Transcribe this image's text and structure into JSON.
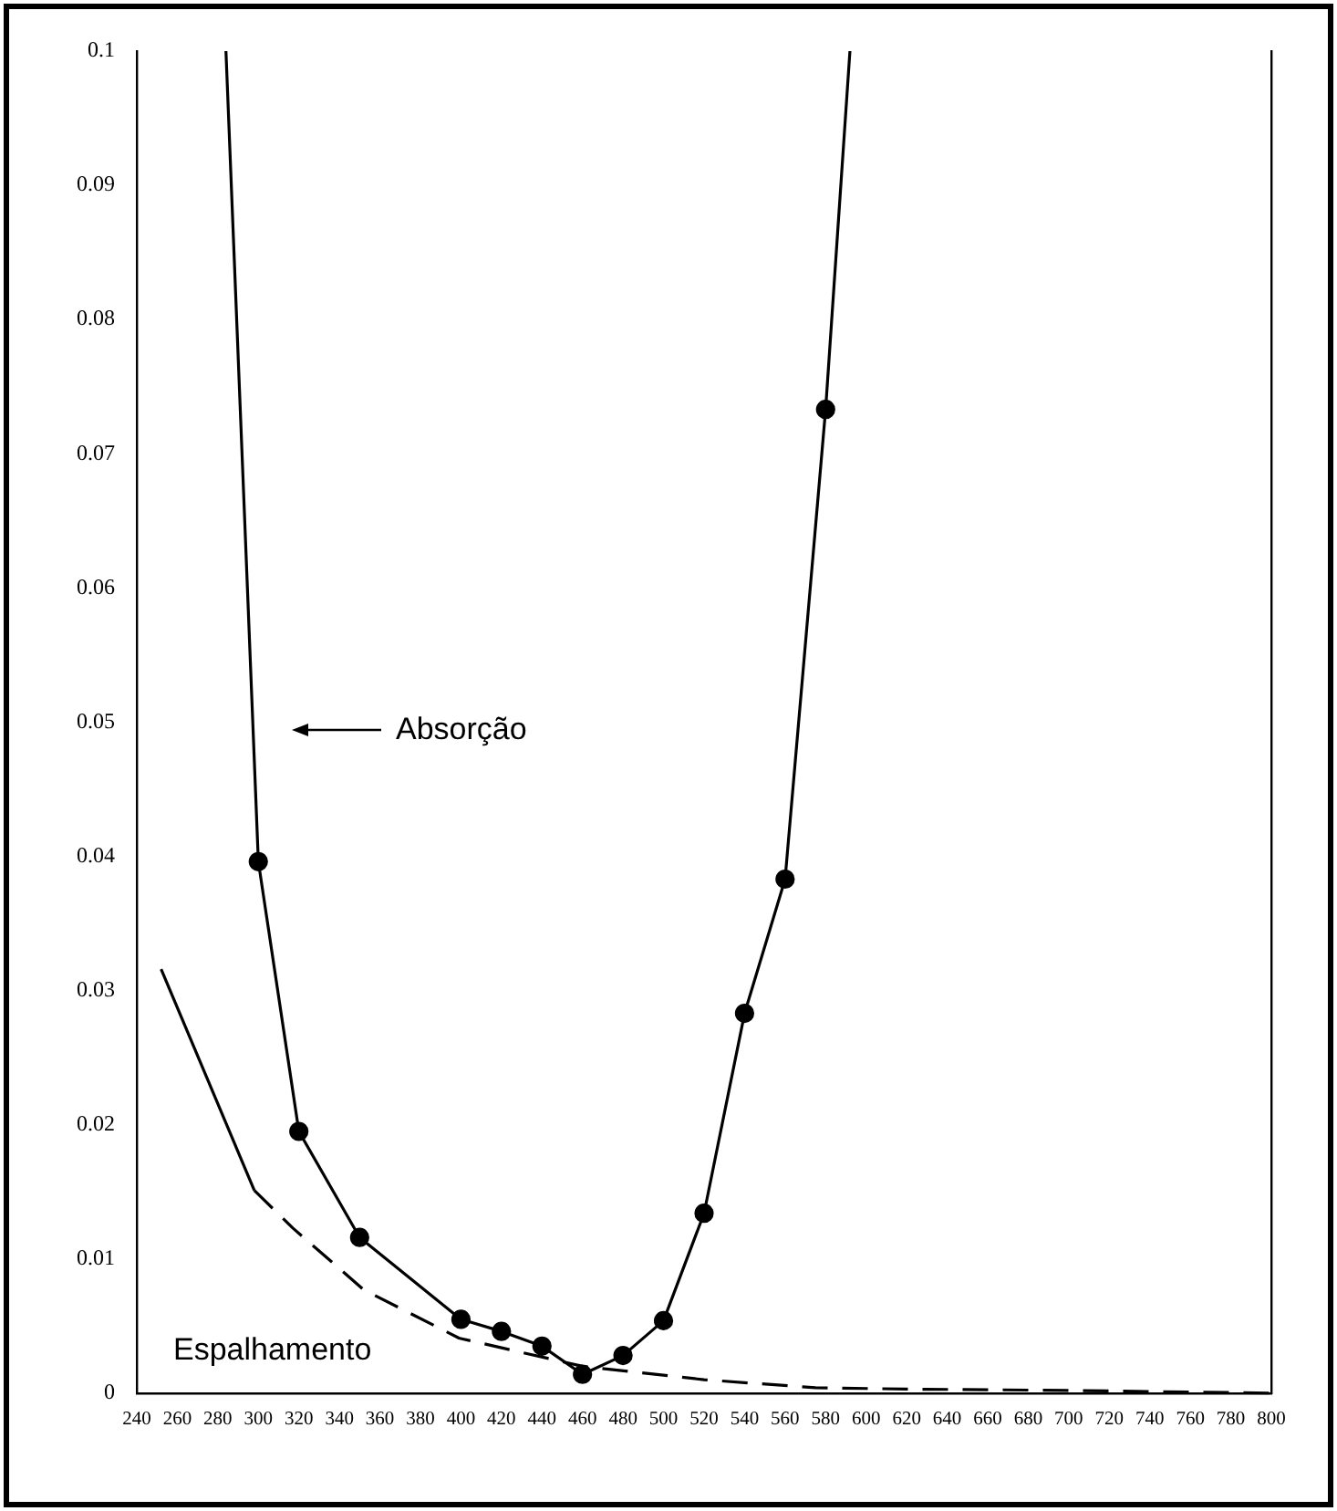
{
  "chart_data": {
    "type": "line",
    "xlim": [
      240,
      800
    ],
    "xticks": [
      240,
      260,
      280,
      300,
      320,
      340,
      360,
      380,
      400,
      420,
      440,
      460,
      480,
      500,
      520,
      540,
      560,
      580,
      600,
      620,
      640,
      660,
      680,
      700,
      720,
      740,
      760,
      780,
      800
    ],
    "ylim": [
      0,
      0.1
    ],
    "yticks": [
      0,
      0.01,
      0.02,
      0.03,
      0.04,
      0.05,
      0.06,
      0.07,
      0.08,
      0.09,
      0.1
    ],
    "grid": false,
    "series": [
      {
        "color": "#000000",
        "marker": "none",
        "line_style": "solid",
        "x": [
          284,
          300,
          320,
          350,
          400,
          420,
          440,
          460,
          480,
          500,
          520,
          540,
          560,
          580,
          592
        ],
        "values": [
          0.1,
          0.0396,
          0.0195,
          0.0116,
          0.0055,
          0.0046,
          0.0035,
          0.0014,
          0.0028,
          0.0054,
          0.0134,
          0.0283,
          0.0383,
          0.0733,
          0.1
        ]
      },
      {
        "type": "scatter",
        "color": "#000000",
        "marker": "circle",
        "x": [
          300,
          320,
          350,
          400,
          420,
          440,
          460,
          480,
          500,
          520,
          540,
          560,
          580
        ],
        "values": [
          0.0396,
          0.0195,
          0.0116,
          0.0055,
          0.0046,
          0.0035,
          0.0014,
          0.0028,
          0.0054,
          0.0134,
          0.0283,
          0.0383,
          0.0733
        ]
      },
      {
        "color": "#000000",
        "marker": "none",
        "line_style": "solid",
        "x": [
          252,
          298
        ],
        "values": [
          0.0316,
          0.0151
        ]
      },
      {
        "color": "#000000",
        "marker": "none",
        "line_style": "dashed",
        "x": [
          298,
          317,
          352,
          399,
          460,
          520,
          575,
          620,
          700,
          800
        ],
        "values": [
          0.0151,
          0.0123,
          0.0077,
          0.0041,
          0.002,
          0.001,
          0.0004,
          0.0003,
          0.0002,
          0.0
        ]
      }
    ],
    "annotations": [
      "Absorção",
      "Espalhamento"
    ]
  }
}
